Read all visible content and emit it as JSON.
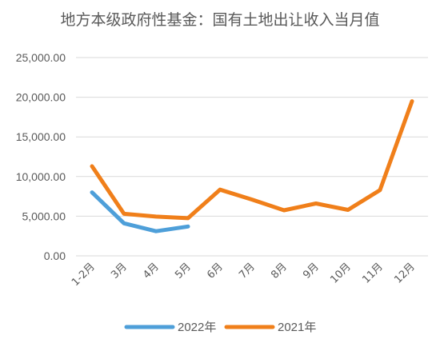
{
  "chart_data": {
    "type": "line",
    "title": "地方本级政府性基金：国有土地出让收入当月值",
    "categories": [
      "1-2月",
      "3月",
      "4月",
      "5月",
      "6月",
      "7月",
      "8月",
      "9月",
      "10月",
      "11月",
      "12月"
    ],
    "ylim": [
      0,
      25000
    ],
    "yticks": [
      "0.00",
      "5,000.00",
      "10,000.00",
      "15,000.00",
      "20,000.00",
      "25,000.00"
    ],
    "ytick_values": [
      0,
      5000,
      10000,
      15000,
      20000,
      25000
    ],
    "grid": true,
    "legend_position": "bottom",
    "series": [
      {
        "name": "2022年",
        "color": "#4E9FD9",
        "values": [
          8000,
          4100,
          3100,
          3700,
          null,
          null,
          null,
          null,
          null,
          null,
          null
        ]
      },
      {
        "name": "2021年",
        "color": "#F07F1A",
        "values": [
          11300,
          5300,
          4950,
          4750,
          8350,
          7100,
          5750,
          6600,
          5800,
          8300,
          19500
        ]
      }
    ]
  }
}
